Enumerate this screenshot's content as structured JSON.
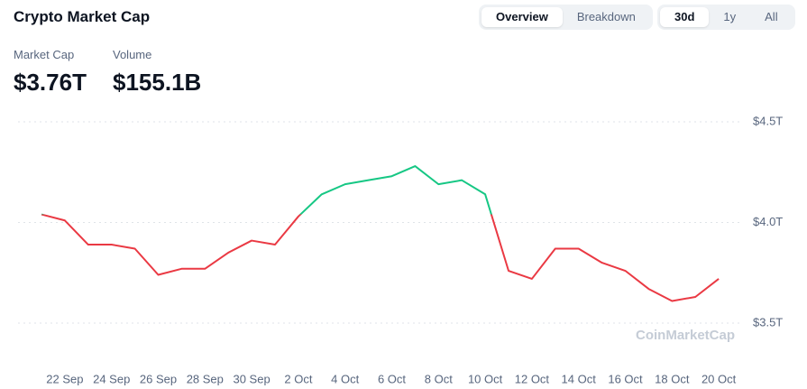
{
  "header": {
    "title": "Crypto Market Cap",
    "tabs": [
      "Overview",
      "Breakdown"
    ],
    "active_tab": 0,
    "ranges": [
      "30d",
      "1y",
      "All"
    ],
    "active_range": 0
  },
  "stats": [
    {
      "label": "Market Cap",
      "value": "$3.76T"
    },
    {
      "label": "Volume",
      "value": "$155.1B"
    }
  ],
  "watermark": "CoinMarketCap",
  "chart_data": {
    "type": "line",
    "categories": [
      null,
      "22 Sep",
      null,
      "24 Sep",
      null,
      "26 Sep",
      null,
      "28 Sep",
      null,
      "30 Sep",
      null,
      "2 Oct",
      null,
      "4 Oct",
      null,
      "6 Oct",
      null,
      "8 Oct",
      null,
      "10 Oct",
      null,
      "12 Oct",
      null,
      "14 Oct",
      null,
      "16 Oct",
      null,
      "18 Oct",
      null,
      "20 Oct"
    ],
    "values": [
      4.04,
      4.01,
      3.89,
      3.89,
      3.87,
      3.74,
      3.77,
      3.77,
      3.85,
      3.91,
      3.89,
      4.03,
      4.14,
      4.19,
      4.21,
      4.23,
      4.28,
      4.19,
      4.21,
      4.14,
      3.76,
      3.72,
      3.87,
      3.87,
      3.8,
      3.76,
      3.67,
      3.61,
      3.63,
      3.72
    ],
    "color_up": "#16c784",
    "color_down": "#ea3943",
    "ylim": [
      3.5,
      4.5
    ],
    "yticks": [
      {
        "value": 3.5,
        "label": "$3.5T"
      },
      {
        "value": 4.0,
        "label": "$4.0T"
      },
      {
        "value": 4.5,
        "label": "$4.5T"
      }
    ],
    "grid": true
  }
}
